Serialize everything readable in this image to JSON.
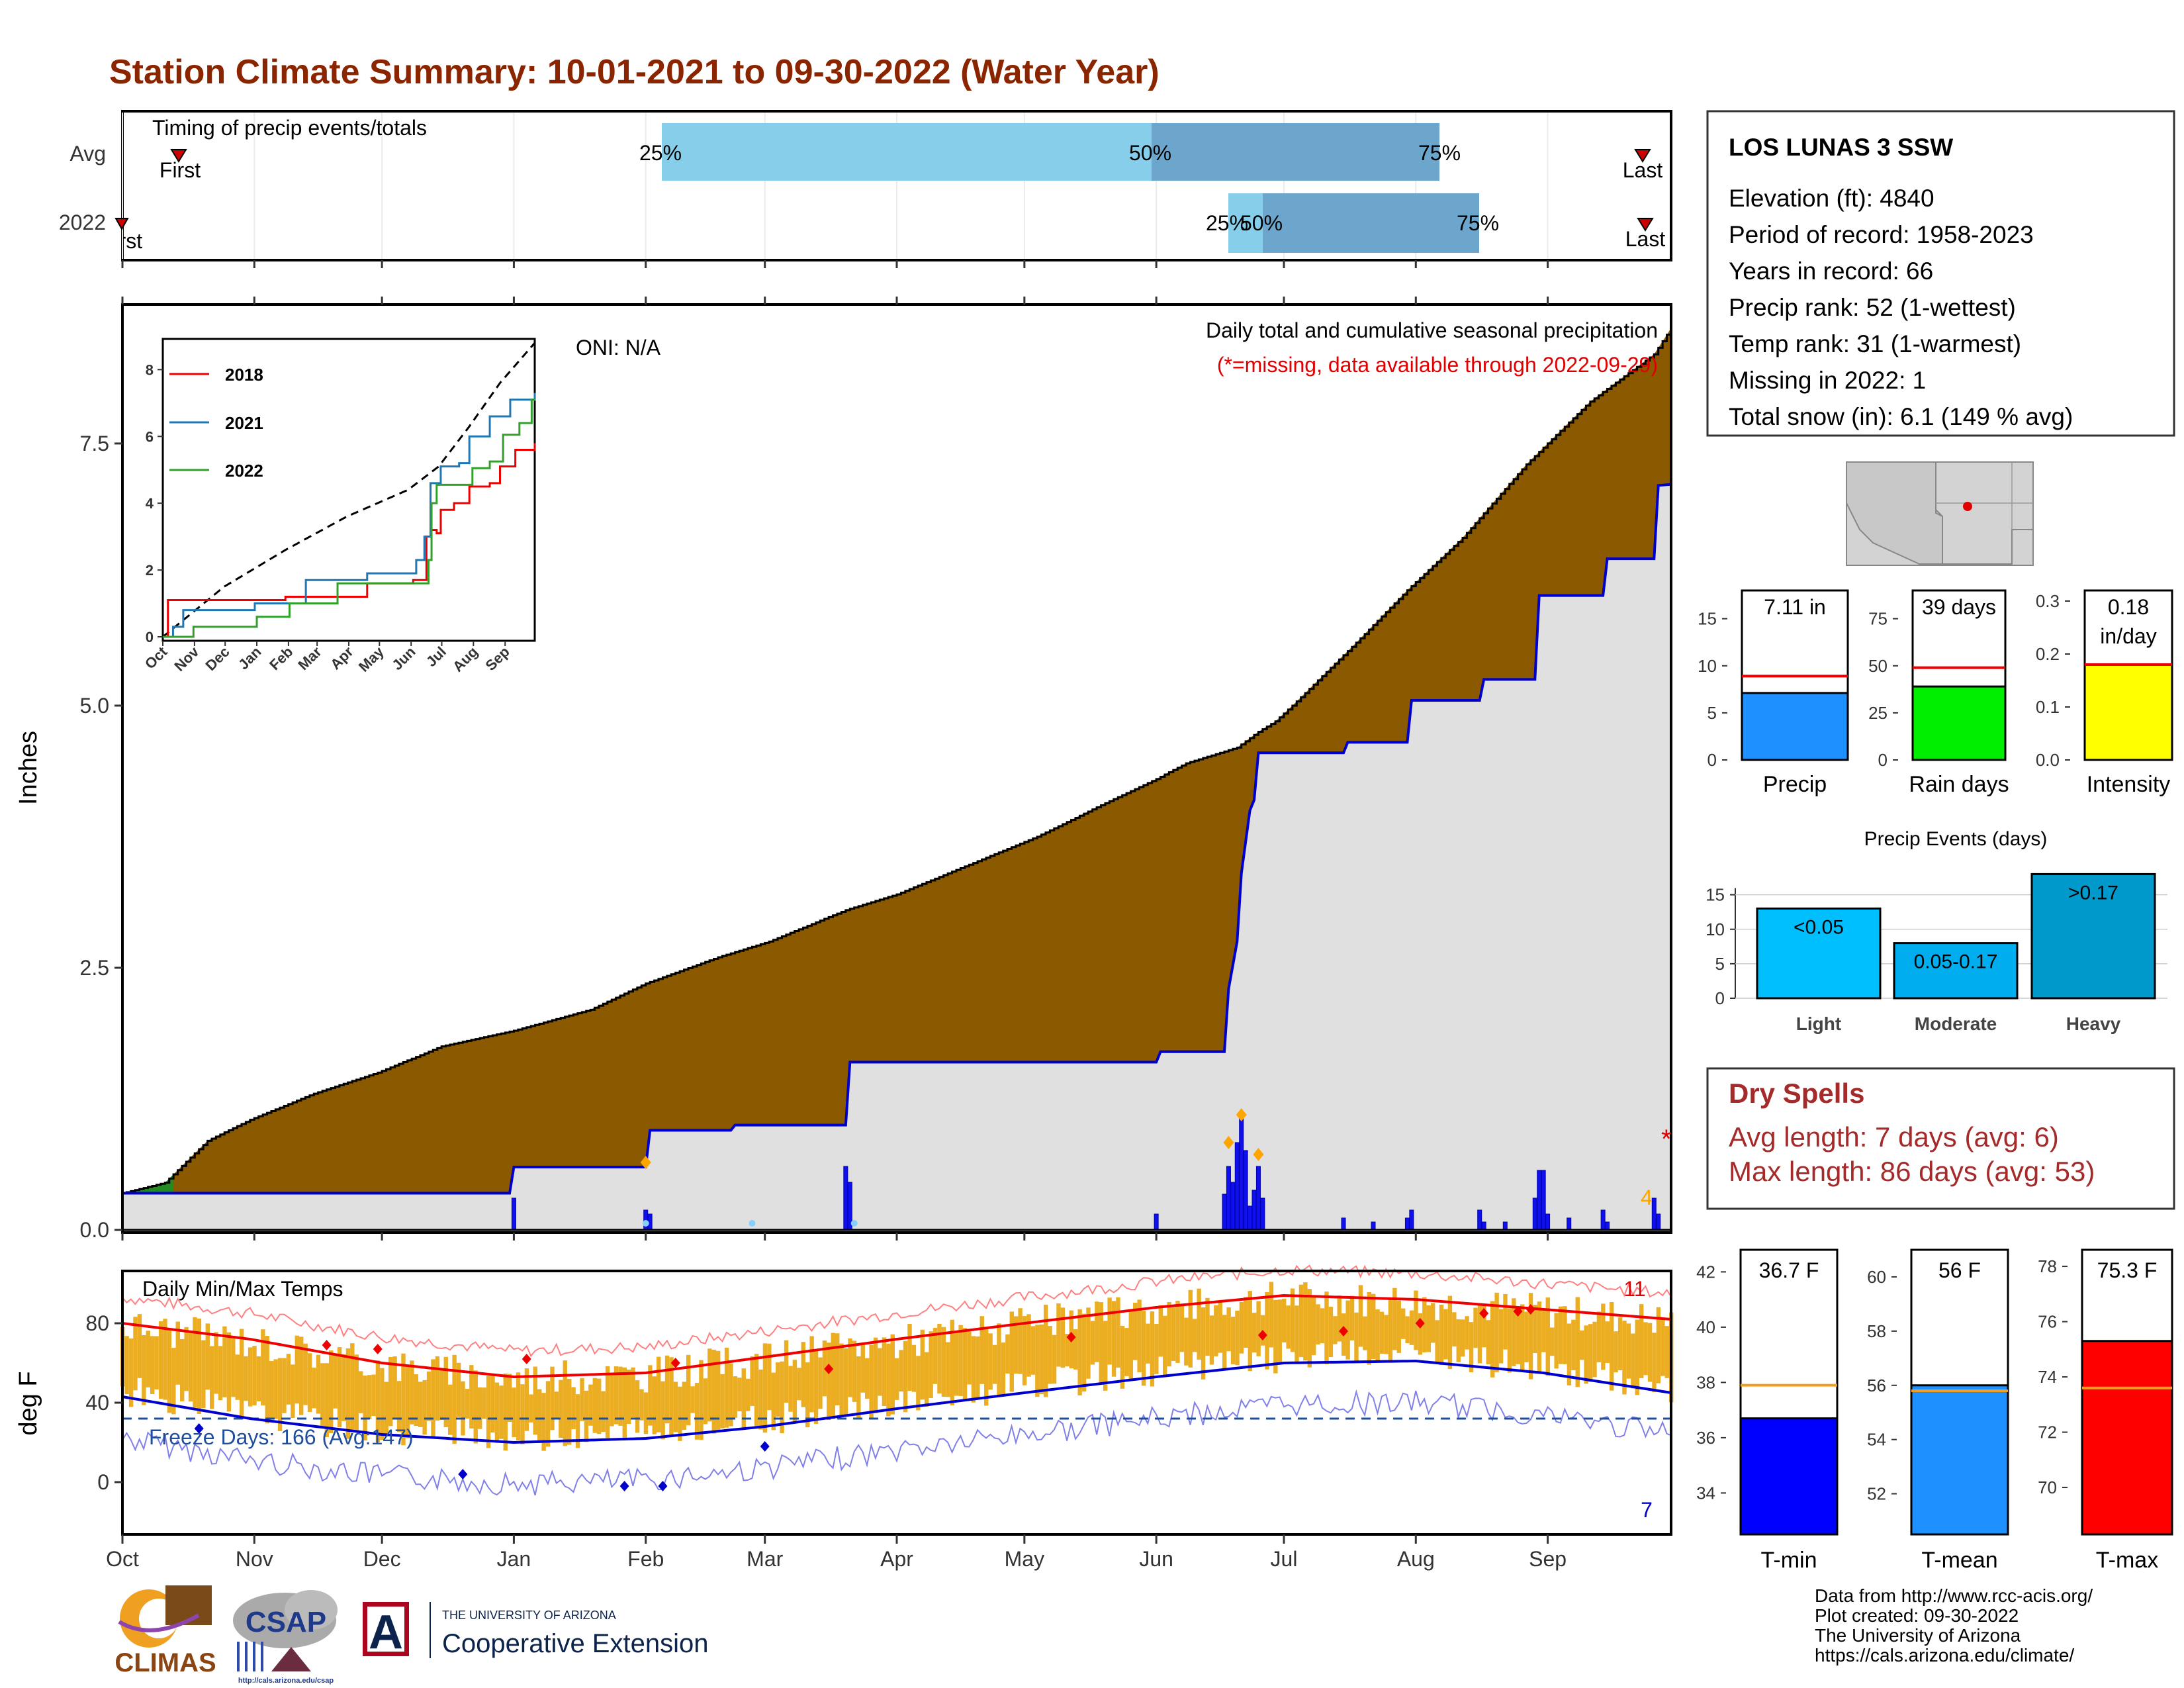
{
  "title": "Station Climate Summary: 10-01-2021 to 09-30-2022 (Water Year)",
  "months": [
    "Oct",
    "Nov",
    "Dec",
    "Jan",
    "Feb",
    "Mar",
    "Apr",
    "May",
    "Jun",
    "Jul",
    "Aug",
    "Sep"
  ],
  "timing": {
    "panel_label": "Timing of precip events/totals",
    "rows": [
      {
        "name": "Avg",
        "q25": "25%",
        "q50": "50%",
        "q75": "75%",
        "first": "First",
        "last": "Last"
      },
      {
        "name": "2022",
        "q25": "25%",
        "q50": "50%",
        "q75": "75%",
        "first": "First",
        "last": "Last"
      }
    ]
  },
  "precip": {
    "ylabel": "Inches",
    "yticks": [
      "0.0",
      "2.5",
      "5.0",
      "7.5"
    ],
    "title": "Daily total and cumulative seasonal precipitation",
    "missing_note": "(*=missing, data available through 2022-09-29)",
    "oni": "ONI: N/A",
    "missing_marker": "*",
    "extreme_count": "4"
  },
  "inset": {
    "yticks": [
      "0",
      "2",
      "4",
      "6",
      "8"
    ],
    "xticks": [
      "Oct",
      "Nov",
      "Dec",
      "Jan",
      "Feb",
      "Mar",
      "Apr",
      "May",
      "Jun",
      "Jul",
      "Aug",
      "Sep"
    ],
    "legend": [
      "2018",
      "2021",
      "2022"
    ]
  },
  "temps": {
    "ylabel": "deg F",
    "panel_label": "Daily Min/Max Temps",
    "yticks": [
      "0",
      "40",
      "80"
    ],
    "freeze": "Freeze Days: 166 (Avg:147)",
    "record_high_count": "11",
    "record_low_count": "7"
  },
  "station": {
    "name": "LOS LUNAS 3 SSW",
    "lines": [
      "Elevation (ft): 4840",
      "Period of record: 1958-2023",
      "Years in record: 66",
      "Precip rank: 52 (1-wettest)",
      "Temp rank: 31 (1-warmest)",
      "Missing in 2022: 1",
      "Total snow (in): 6.1 (149 % avg)"
    ]
  },
  "bars_top": [
    {
      "label": "Precip",
      "value_text": "7.11 in",
      "ticks": [
        "0",
        "5",
        "10",
        "15"
      ]
    },
    {
      "label": "Rain days",
      "value_text": "39 days",
      "ticks": [
        "0",
        "25",
        "50",
        "75"
      ]
    },
    {
      "label": "Intensity",
      "value_text_1": "0.18",
      "value_text_2": "in/day",
      "ticks": [
        "0.0",
        "0.1",
        "0.2",
        "0.3"
      ]
    }
  ],
  "events": {
    "title": "Precip Events (days)",
    "ticks": [
      "0",
      "5",
      "10",
      "15"
    ],
    "bars": [
      {
        "label": "Light",
        "text": "<0.05"
      },
      {
        "label": "Moderate",
        "text": "0.05-0.17"
      },
      {
        "label": "Heavy",
        "text": ">0.17"
      }
    ]
  },
  "dry": {
    "title": "Dry Spells",
    "avg": "Avg length: 7 days (avg: 6)",
    "max": "Max length: 86 days (avg: 53)"
  },
  "tbars": [
    {
      "label": "T-min",
      "value_text": "36.7 F",
      "ticks": [
        "34",
        "36",
        "38",
        "40",
        "42"
      ]
    },
    {
      "label": "T-mean",
      "value_text": "56 F",
      "ticks": [
        "52",
        "54",
        "56",
        "58",
        "60"
      ]
    },
    {
      "label": "T-max",
      "value_text": "75.3 F",
      "ticks": [
        "70",
        "72",
        "74",
        "76",
        "78"
      ]
    }
  ],
  "credits": [
    "Data from http://www.rcc-acis.org/",
    "Plot created: 09-30-2022",
    "The University of Arizona",
    "https://cals.arizona.edu/climate/"
  ],
  "logos": {
    "climas": "CLIMAS",
    "csap": "CSAP",
    "csap_url": "http://cals.arizona.edu/csap",
    "ua_small": "THE UNIVERSITY OF ARIZONA",
    "ua_big": "Cooperative Extension",
    "ua_letter": "A"
  },
  "colors": {
    "title": "#8B2500",
    "cumavg": "#8B5A00",
    "cum2022": "#0000CD",
    "surplus": "#228B22",
    "tmax": "#EE0000",
    "tmin": "#0000CD",
    "range": "#EBAE22",
    "precipbar": "#1E90FF",
    "raindays": "#00EE00",
    "intensity": "#FFFF00",
    "light": "#00BFFF",
    "moderate": "#00AEEF",
    "heavy": "#0099CC"
  },
  "chart_data": [
    {
      "type": "area",
      "title": "Daily total and cumulative seasonal precipitation",
      "ylabel": "Inches",
      "ylim": [
        0,
        8.8
      ],
      "series": [
        {
          "name": "cumulative average",
          "x_day": [
            0,
            10,
            20,
            30,
            45,
            60,
            75,
            92,
            110,
            123,
            140,
            152,
            170,
            182,
            200,
            215,
            230,
            243,
            250,
            262,
            267,
            271,
            275,
            290,
            302,
            315,
            330,
            345,
            360,
            364
          ],
          "y": [
            0.35,
            0.45,
            0.85,
            1.05,
            1.3,
            1.5,
            1.75,
            1.9,
            2.1,
            2.35,
            2.6,
            2.75,
            3.05,
            3.2,
            3.5,
            3.75,
            4.05,
            4.3,
            4.45,
            4.6,
            4.75,
            4.85,
            5.0,
            5.6,
            6.1,
            6.6,
            7.3,
            7.9,
            8.35,
            8.6
          ]
        },
        {
          "name": "cumulative 2022",
          "x_day": [
            0,
            91,
            92,
            123,
            124,
            143,
            144,
            170,
            171,
            185,
            186,
            243,
            244,
            259,
            260,
            262,
            263,
            265,
            266,
            267,
            268,
            269,
            270,
            287,
            288,
            302,
            303,
            319,
            320,
            332,
            333,
            348,
            349,
            360,
            361,
            364
          ],
          "y": [
            0.35,
            0.35,
            0.6,
            0.6,
            0.95,
            0.95,
            1.0,
            1.0,
            1.6,
            1.6,
            1.6,
            1.6,
            1.7,
            1.7,
            2.3,
            2.75,
            3.4,
            4.0,
            4.1,
            4.55,
            4.55,
            4.55,
            4.55,
            4.55,
            4.65,
            4.65,
            5.05,
            5.05,
            5.25,
            5.25,
            6.05,
            6.05,
            6.4,
            6.4,
            7.1,
            7.11
          ]
        }
      ]
    },
    {
      "type": "line",
      "ylabel": "deg F",
      "ylim": [
        -25,
        105
      ],
      "series": [
        {
          "name": "normal max",
          "x_day": [
            0,
            30,
            61,
            92,
            123,
            151,
            182,
            212,
            243,
            273,
            304,
            334,
            364
          ],
          "y": [
            80,
            72,
            60,
            53,
            55,
            63,
            72,
            80,
            88,
            94,
            92,
            87,
            82
          ]
        },
        {
          "name": "normal min",
          "x_day": [
            0,
            30,
            61,
            92,
            123,
            151,
            182,
            212,
            243,
            273,
            304,
            334,
            364
          ],
          "y": [
            43,
            32,
            24,
            20,
            22,
            28,
            37,
            45,
            53,
            60,
            61,
            55,
            45
          ]
        }
      ]
    }
  ]
}
